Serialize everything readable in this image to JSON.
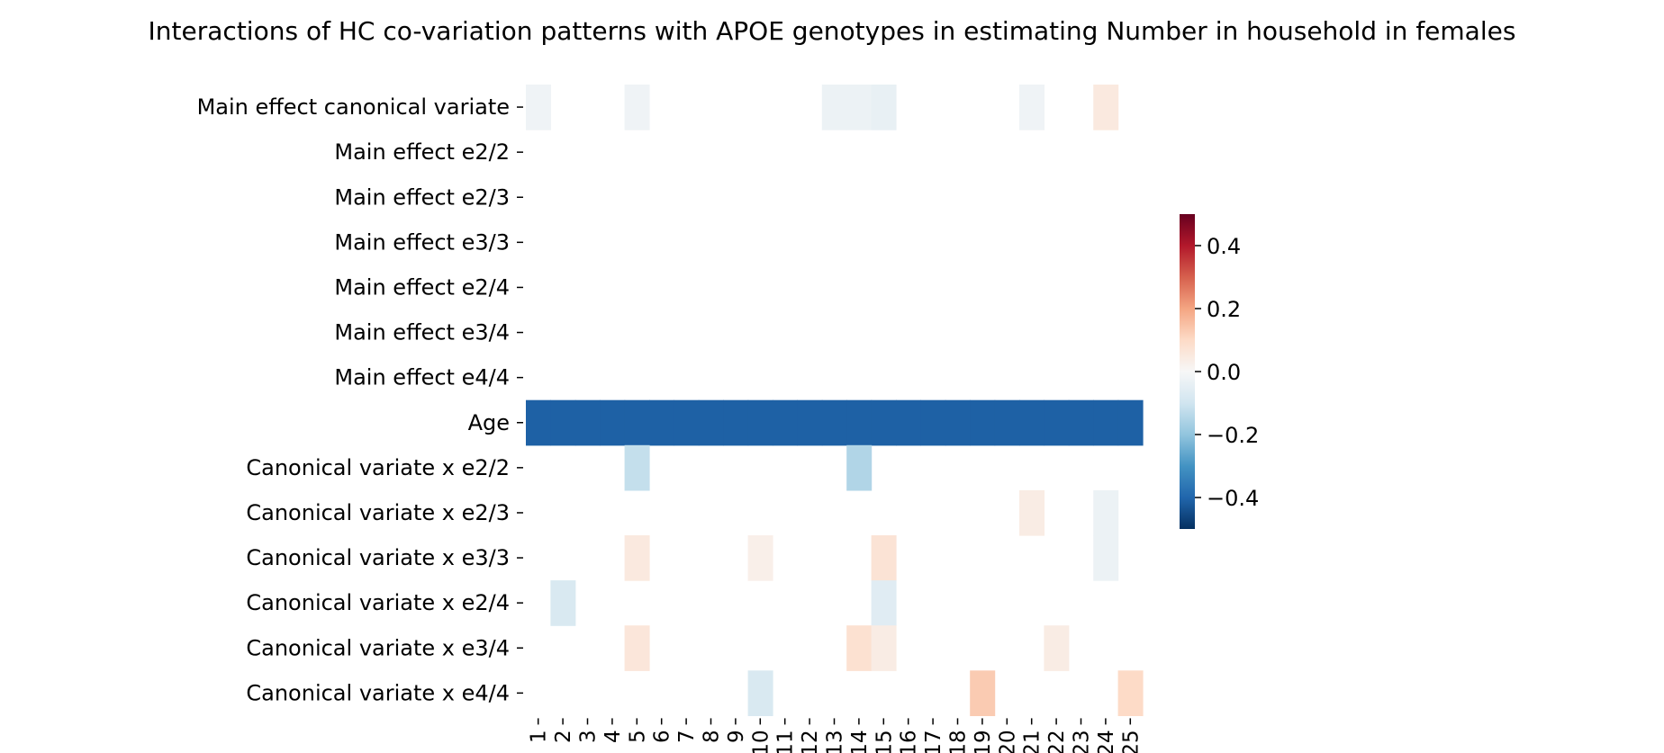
{
  "chart_data": {
    "type": "heatmap",
    "title": "Interactions of HC co-variation patterns with APOE genotypes in estimating Number in household in females",
    "xlabel": "",
    "ylabel": "",
    "colormap": "RdBu_r",
    "color_range": [
      -0.5,
      0.5
    ],
    "colorbar_ticks": [
      {
        "value": 0.4,
        "label": "0.4"
      },
      {
        "value": 0.2,
        "label": "0.2"
      },
      {
        "value": 0.0,
        "label": "0.0"
      },
      {
        "value": -0.2,
        "label": "−0.2"
      },
      {
        "value": -0.4,
        "label": "−0.4"
      }
    ],
    "x": [
      "1",
      "2",
      "3",
      "4",
      "5",
      "6",
      "7",
      "8",
      "9",
      "10",
      "11",
      "12",
      "13",
      "14",
      "15",
      "16",
      "17",
      "18",
      "19",
      "20",
      "21",
      "22",
      "23",
      "24",
      "25"
    ],
    "y": [
      "Main effect canonical variate",
      "Main effect e2/2",
      "Main effect e2/3",
      "Main effect e3/3",
      "Main effect e2/4",
      "Main effect e3/4",
      "Main effect e4/4",
      "Age",
      "Canonical variate x e2/2",
      "Canonical variate x e2/3",
      "Canonical variate x e3/3",
      "Canonical variate x e2/4",
      "Canonical variate x e3/4",
      "Canonical variate x e4/4"
    ],
    "values": [
      [
        -0.02,
        0,
        0,
        0,
        -0.02,
        0,
        0,
        0,
        0,
        0,
        0,
        0,
        -0.03,
        -0.03,
        -0.04,
        0,
        0,
        0,
        0,
        0,
        -0.02,
        0,
        0,
        0.05,
        0
      ],
      [
        0,
        0,
        0,
        0,
        0,
        0,
        0,
        0,
        0,
        0,
        0,
        0,
        0,
        0,
        0,
        0,
        0,
        0,
        0,
        0,
        0,
        0,
        0,
        0,
        0
      ],
      [
        0,
        0,
        0,
        0,
        0,
        0,
        0,
        0,
        0,
        0,
        0,
        0,
        0,
        0,
        0,
        0,
        0,
        0,
        0,
        0,
        0,
        0,
        0,
        0,
        0
      ],
      [
        0,
        0,
        0,
        0,
        0,
        0,
        0,
        0,
        0,
        0,
        0,
        0,
        0,
        0,
        0,
        0,
        0,
        0,
        0,
        0,
        0,
        0,
        0,
        0,
        0
      ],
      [
        0,
        0,
        0,
        0,
        0,
        0,
        0,
        0,
        0,
        0,
        0,
        0,
        0,
        0,
        0,
        0,
        0,
        0,
        0,
        0,
        0,
        0,
        0,
        0,
        0
      ],
      [
        0,
        0,
        0,
        0,
        0,
        0,
        0,
        0,
        0,
        0,
        0,
        0,
        0,
        0,
        0,
        0,
        0,
        0,
        0,
        0,
        0,
        0,
        0,
        0,
        0
      ],
      [
        0,
        0,
        0,
        0,
        0,
        0,
        0,
        0,
        0,
        0,
        0,
        0,
        0,
        0,
        0,
        0,
        0,
        0,
        0,
        0,
        0,
        0,
        0,
        0,
        0
      ],
      [
        -0.41,
        -0.41,
        -0.41,
        -0.41,
        -0.41,
        -0.41,
        -0.41,
        -0.41,
        -0.41,
        -0.41,
        -0.41,
        -0.41,
        -0.41,
        -0.41,
        -0.41,
        -0.41,
        -0.41,
        -0.41,
        -0.41,
        -0.41,
        -0.41,
        -0.41,
        -0.41,
        -0.41,
        -0.41
      ],
      [
        0,
        0,
        0,
        0,
        -0.12,
        0,
        0,
        0,
        0,
        0,
        0,
        0,
        0,
        -0.15,
        0,
        0,
        0,
        0,
        0,
        0,
        0,
        0,
        0,
        0,
        0
      ],
      [
        0,
        0,
        0,
        0,
        0,
        0,
        0,
        0,
        0,
        0,
        0,
        0,
        0,
        0,
        0,
        0,
        0,
        0,
        0,
        0,
        0.04,
        0,
        0,
        -0.03,
        0
      ],
      [
        0,
        0,
        0,
        0,
        0.05,
        0,
        0,
        0,
        0,
        0.03,
        0,
        0,
        0,
        0,
        0.07,
        0,
        0,
        0,
        0,
        0,
        0,
        0,
        0,
        -0.03,
        0
      ],
      [
        0,
        -0.08,
        0,
        0,
        0,
        0,
        0,
        0,
        0,
        0,
        0,
        0,
        0,
        0,
        -0.06,
        0,
        0,
        0,
        0,
        0,
        0,
        0,
        0,
        0,
        0
      ],
      [
        0,
        0,
        0,
        0,
        0.06,
        0,
        0,
        0,
        0,
        0,
        0,
        0,
        0,
        0.08,
        0.04,
        0,
        0,
        0,
        0,
        0,
        0,
        0.04,
        0,
        0,
        0
      ],
      [
        0,
        0,
        0,
        0,
        0,
        0,
        0,
        0,
        0,
        -0.08,
        0,
        0,
        0,
        0,
        0,
        0,
        0,
        0,
        0.13,
        0,
        0,
        0,
        0,
        0,
        0.1
      ]
    ]
  }
}
